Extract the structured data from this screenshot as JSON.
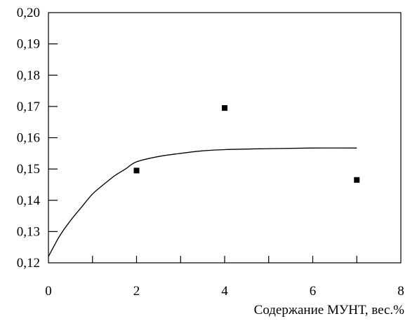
{
  "chart_data": {
    "type": "scatter",
    "title": "",
    "xlabel": "Содержание МУНТ, вес.%",
    "ylabel": "",
    "xlim": [
      0,
      8
    ],
    "ylim": [
      0.12,
      0.2
    ],
    "x_ticks": [
      0,
      2,
      4,
      6,
      8
    ],
    "x_tick_labels": [
      "0",
      "2",
      "4",
      "6",
      "8"
    ],
    "y_ticks": [
      0.12,
      0.13,
      0.14,
      0.15,
      0.16,
      0.17,
      0.18,
      0.19,
      0.2
    ],
    "y_tick_labels": [
      "0,12",
      "0,13",
      "0,14",
      "0,15",
      "0,16",
      "0,17",
      "0,18",
      "0,19",
      "0,20"
    ],
    "grid": false,
    "legend": "none",
    "series": [
      {
        "kind": "points",
        "marker": "square",
        "color": "#000000",
        "points": [
          {
            "x": 2,
            "y": 0.1495
          },
          {
            "x": 4,
            "y": 0.1695
          },
          {
            "x": 7,
            "y": 0.1465
          }
        ]
      },
      {
        "kind": "fit-curve",
        "color": "#000000",
        "points": [
          {
            "x": 0.0,
            "y": 0.122
          },
          {
            "x": 0.25,
            "y": 0.1285
          },
          {
            "x": 0.5,
            "y": 0.1335
          },
          {
            "x": 0.75,
            "y": 0.1378
          },
          {
            "x": 1.0,
            "y": 0.142
          },
          {
            "x": 1.25,
            "y": 0.145
          },
          {
            "x": 1.5,
            "y": 0.1478
          },
          {
            "x": 1.75,
            "y": 0.15
          },
          {
            "x": 2.0,
            "y": 0.1523
          },
          {
            "x": 2.5,
            "y": 0.154
          },
          {
            "x": 3.0,
            "y": 0.155
          },
          {
            "x": 3.5,
            "y": 0.1558
          },
          {
            "x": 4.0,
            "y": 0.1562
          },
          {
            "x": 5.0,
            "y": 0.1565
          },
          {
            "x": 6.0,
            "y": 0.1567
          },
          {
            "x": 7.0,
            "y": 0.1567
          }
        ]
      }
    ]
  }
}
